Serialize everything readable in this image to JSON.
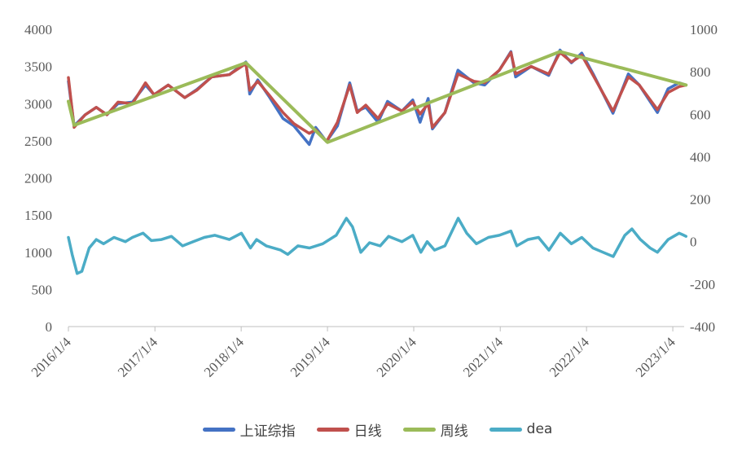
{
  "chart_data": {
    "type": "line",
    "x_ticks": [
      "2016/1/4",
      "2017/1/4",
      "2018/1/4",
      "2019/1/4",
      "2020/1/4",
      "2021/1/4",
      "2022/1/4",
      "2023/1/4"
    ],
    "y_left": {
      "min": 0,
      "max": 4000,
      "ticks": [
        "0",
        "500",
        "1000",
        "1500",
        "2000",
        "2500",
        "3000",
        "3500",
        "4000"
      ]
    },
    "y_right": {
      "min": -400,
      "max": 1000,
      "ticks": [
        "-400",
        "-200",
        "0",
        "200",
        "400",
        "600",
        "800",
        "1000"
      ]
    },
    "series": [
      {
        "name": "上证综指",
        "axis": "left",
        "color": "#4472c4",
        "points": [
          [
            "2016/1/4",
            3300
          ],
          [
            "2016/1/28",
            2700
          ],
          [
            "2016/3/15",
            2850
          ],
          [
            "2016/5/1",
            2950
          ],
          [
            "2016/6/15",
            2850
          ],
          [
            "2016/8/1",
            3000
          ],
          [
            "2016/10/1",
            3020
          ],
          [
            "2016/11/25",
            3250
          ],
          [
            "2016/12/31",
            3120
          ],
          [
            "2017/3/1",
            3250
          ],
          [
            "2017/5/10",
            3080
          ],
          [
            "2017/6/30",
            3190
          ],
          [
            "2017/9/1",
            3360
          ],
          [
            "2017/11/15",
            3390
          ],
          [
            "2018/1/24",
            3560
          ],
          [
            "2018/2/9",
            3130
          ],
          [
            "2018/3/15",
            3320
          ],
          [
            "2018/5/1",
            3100
          ],
          [
            "2018/6/30",
            2800
          ],
          [
            "2018/8/15",
            2700
          ],
          [
            "2018/10/19",
            2450
          ],
          [
            "2018/11/15",
            2680
          ],
          [
            "2018/12/31",
            2490
          ],
          [
            "2019/2/15",
            2700
          ],
          [
            "2019/4/8",
            3280
          ],
          [
            "2019/5/10",
            2900
          ],
          [
            "2019/6/15",
            2950
          ],
          [
            "2019/8/6",
            2750
          ],
          [
            "2019/9/15",
            3030
          ],
          [
            "2019/11/15",
            2900
          ],
          [
            "2019/12/31",
            3050
          ],
          [
            "2020/1/31",
            2750
          ],
          [
            "2020/3/5",
            3070
          ],
          [
            "2020/3/23",
            2660
          ],
          [
            "2020/5/15",
            2880
          ],
          [
            "2020/7/9",
            3450
          ],
          [
            "2020/9/15",
            3280
          ],
          [
            "2020/10/30",
            3250
          ],
          [
            "2020/12/31",
            3450
          ],
          [
            "2021/2/18",
            3700
          ],
          [
            "2021/3/10",
            3360
          ],
          [
            "2021/5/15",
            3500
          ],
          [
            "2021/7/28",
            3380
          ],
          [
            "2021/9/14",
            3720
          ],
          [
            "2021/11/1",
            3550
          ],
          [
            "2021/12/15",
            3680
          ],
          [
            "2022/2/1",
            3400
          ],
          [
            "2022/4/26",
            2870
          ],
          [
            "2022/6/30",
            3400
          ],
          [
            "2022/8/15",
            3250
          ],
          [
            "2022/10/31",
            2880
          ],
          [
            "2022/12/15",
            3200
          ],
          [
            "2023/1/31",
            3280
          ],
          [
            "2023/3/1",
            3250
          ]
        ]
      },
      {
        "name": "日线",
        "axis": "left",
        "color": "#c0504d",
        "points": [
          [
            "2016/1/4",
            3350
          ],
          [
            "2016/1/28",
            2680
          ],
          [
            "2016/3/15",
            2850
          ],
          [
            "2016/5/1",
            2950
          ],
          [
            "2016/6/15",
            2850
          ],
          [
            "2016/8/1",
            3020
          ],
          [
            "2016/10/1",
            3000
          ],
          [
            "2016/11/25",
            3280
          ],
          [
            "2016/12/31",
            3120
          ],
          [
            "2017/3/1",
            3250
          ],
          [
            "2017/5/10",
            3080
          ],
          [
            "2017/6/30",
            3180
          ],
          [
            "2017/9/1",
            3360
          ],
          [
            "2017/11/15",
            3390
          ],
          [
            "2018/1/24",
            3540
          ],
          [
            "2018/2/9",
            3180
          ],
          [
            "2018/3/15",
            3300
          ],
          [
            "2018/5/1",
            3120
          ],
          [
            "2018/6/30",
            2880
          ],
          [
            "2018/8/15",
            2730
          ],
          [
            "2018/10/19",
            2600
          ],
          [
            "2018/11/15",
            2650
          ],
          [
            "2018/12/31",
            2490
          ],
          [
            "2019/2/15",
            2750
          ],
          [
            "2019/4/8",
            3250
          ],
          [
            "2019/5/10",
            2880
          ],
          [
            "2019/6/15",
            2980
          ],
          [
            "2019/8/6",
            2800
          ],
          [
            "2019/9/15",
            3000
          ],
          [
            "2019/11/15",
            2900
          ],
          [
            "2019/12/31",
            3020
          ],
          [
            "2020/1/31",
            2860
          ],
          [
            "2020/3/5",
            3000
          ],
          [
            "2020/3/23",
            2680
          ],
          [
            "2020/5/15",
            2880
          ],
          [
            "2020/7/9",
            3400
          ],
          [
            "2020/9/15",
            3300
          ],
          [
            "2020/10/30",
            3280
          ],
          [
            "2020/12/31",
            3450
          ],
          [
            "2021/2/18",
            3690
          ],
          [
            "2021/3/10",
            3400
          ],
          [
            "2021/5/15",
            3500
          ],
          [
            "2021/7/28",
            3400
          ],
          [
            "2021/9/14",
            3690
          ],
          [
            "2021/11/1",
            3560
          ],
          [
            "2021/12/15",
            3650
          ],
          [
            "2022/2/1",
            3380
          ],
          [
            "2022/4/26",
            2900
          ],
          [
            "2022/6/30",
            3360
          ],
          [
            "2022/8/15",
            3250
          ],
          [
            "2022/10/31",
            2920
          ],
          [
            "2022/12/15",
            3150
          ],
          [
            "2023/1/31",
            3230
          ],
          [
            "2023/3/1",
            3250
          ]
        ]
      },
      {
        "name": "周线",
        "axis": "left",
        "color": "#9bbb59",
        "points": [
          [
            "2016/1/4",
            3030
          ],
          [
            "2016/1/28",
            2710
          ],
          [
            "2018/1/24",
            3550
          ],
          [
            "2019/1/4",
            2480
          ],
          [
            "2021/9/14",
            3700
          ],
          [
            "2023/3/1",
            3250
          ]
        ]
      },
      {
        "name": "dea",
        "axis": "right",
        "color": "#4bacc6",
        "points": [
          [
            "2016/1/4",
            20
          ],
          [
            "2016/1/20",
            -60
          ],
          [
            "2016/2/10",
            -150
          ],
          [
            "2016/3/1",
            -140
          ],
          [
            "2016/4/1",
            -30
          ],
          [
            "2016/5/1",
            10
          ],
          [
            "2016/6/1",
            -10
          ],
          [
            "2016/7/15",
            20
          ],
          [
            "2016/9/1",
            0
          ],
          [
            "2016/10/1",
            20
          ],
          [
            "2016/11/15",
            40
          ],
          [
            "2016/12/20",
            5
          ],
          [
            "2017/2/1",
            10
          ],
          [
            "2017/3/15",
            25
          ],
          [
            "2017/5/1",
            -20
          ],
          [
            "2017/6/15",
            0
          ],
          [
            "2017/8/1",
            20
          ],
          [
            "2017/9/15",
            30
          ],
          [
            "2017/11/15",
            10
          ],
          [
            "2018/1/5",
            40
          ],
          [
            "2018/2/12",
            -30
          ],
          [
            "2018/3/10",
            10
          ],
          [
            "2018/4/20",
            -20
          ],
          [
            "2018/6/20",
            -40
          ],
          [
            "2018/7/20",
            -60
          ],
          [
            "2018/9/1",
            -20
          ],
          [
            "2018/10/20",
            -30
          ],
          [
            "2018/12/15",
            -10
          ],
          [
            "2019/2/10",
            30
          ],
          [
            "2019/3/25",
            110
          ],
          [
            "2019/4/20",
            70
          ],
          [
            "2019/5/25",
            -50
          ],
          [
            "2019/7/1",
            -5
          ],
          [
            "2019/8/15",
            -20
          ],
          [
            "2019/9/20",
            25
          ],
          [
            "2019/11/15",
            0
          ],
          [
            "2019/12/31",
            30
          ],
          [
            "2020/2/3",
            -50
          ],
          [
            "2020/3/1",
            0
          ],
          [
            "2020/4/1",
            -40
          ],
          [
            "2020/5/15",
            -20
          ],
          [
            "2020/7/10",
            110
          ],
          [
            "2020/8/15",
            40
          ],
          [
            "2020/9/25",
            -10
          ],
          [
            "2020/11/15",
            20
          ],
          [
            "2020/12/31",
            30
          ],
          [
            "2021/2/18",
            50
          ],
          [
            "2021/3/15",
            -20
          ],
          [
            "2021/5/1",
            10
          ],
          [
            "2021/6/15",
            20
          ],
          [
            "2021/7/29",
            -40
          ],
          [
            "2021/9/15",
            40
          ],
          [
            "2021/11/1",
            -10
          ],
          [
            "2021/12/15",
            20
          ],
          [
            "2022/1/31",
            -30
          ],
          [
            "2022/3/15",
            -50
          ],
          [
            "2022/4/27",
            -70
          ],
          [
            "2022/6/15",
            30
          ],
          [
            "2022/7/15",
            60
          ],
          [
            "2022/8/20",
            10
          ],
          [
            "2022/9/30",
            -30
          ],
          [
            "2022/10/31",
            -50
          ],
          [
            "2022/12/15",
            10
          ],
          [
            "2023/1/31",
            40
          ],
          [
            "2023/2/20",
            30
          ],
          [
            "2023/3/1",
            25
          ]
        ]
      }
    ]
  }
}
